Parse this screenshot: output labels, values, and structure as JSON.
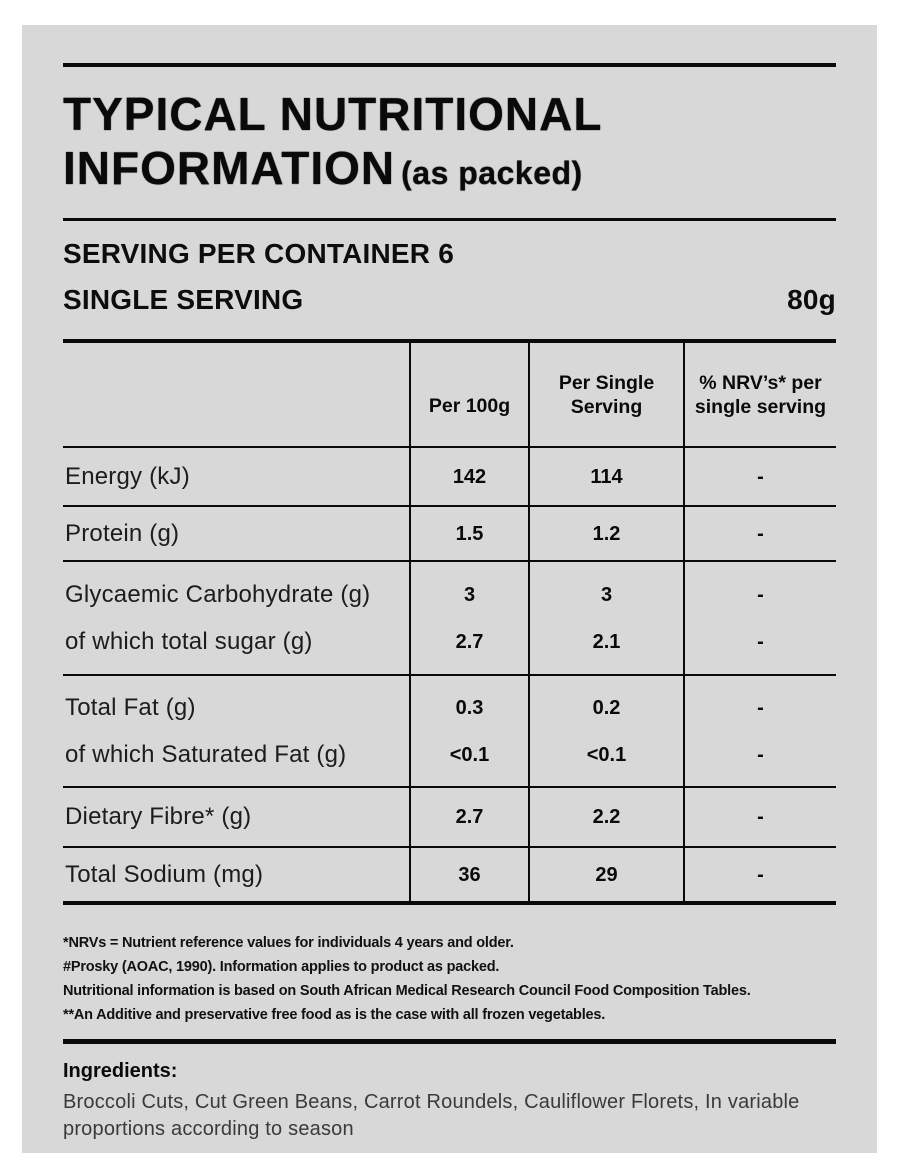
{
  "colors": {
    "panel_background": "#d8d8d8",
    "text": "#0a0a0a"
  },
  "title": {
    "line1": "TYPICAL NUTRITIONAL",
    "line2": "INFORMATION",
    "suffix": "(as packed)"
  },
  "serving": {
    "per_container": "SERVING PER CONTAINER 6",
    "single_serving_label": "SINGLE SERVING",
    "single_serving_value": "80g"
  },
  "table": {
    "headers": {
      "col1": "",
      "col2": "Per 100g",
      "col3": "Per Single\nServing",
      "col4": "% NRV’s* per\nsingle serving"
    },
    "rows": [
      {
        "label": [
          "Energy (kJ)"
        ],
        "per_100g": [
          "142"
        ],
        "per_serving": [
          "114"
        ],
        "nrv": [
          "-"
        ]
      },
      {
        "label": [
          "Protein (g)"
        ],
        "per_100g": [
          "1.5"
        ],
        "per_serving": [
          "1.2"
        ],
        "nrv": [
          "-"
        ]
      },
      {
        "label": [
          "Glycaemic Carbohydrate (g)",
          "of which total sugar (g)"
        ],
        "per_100g": [
          "3",
          "2.7"
        ],
        "per_serving": [
          "3",
          "2.1"
        ],
        "nrv": [
          "-",
          "-"
        ]
      },
      {
        "label": [
          "Total Fat (g)",
          "of which Saturated Fat (g)"
        ],
        "per_100g": [
          "0.3",
          "<0.1"
        ],
        "per_serving": [
          "0.2",
          "<0.1"
        ],
        "nrv": [
          "-",
          "-"
        ]
      },
      {
        "label": [
          "Dietary Fibre* (g)"
        ],
        "per_100g": [
          "2.7"
        ],
        "per_serving": [
          "2.2"
        ],
        "nrv": [
          "-"
        ]
      },
      {
        "label": [
          "Total Sodium (mg)"
        ],
        "per_100g": [
          "36"
        ],
        "per_serving": [
          "29"
        ],
        "nrv": [
          "-"
        ]
      }
    ]
  },
  "footnotes": [
    "*NRVs = Nutrient reference values for individuals 4 years and older.",
    "#Prosky (AOAC, 1990). Information applies to product as packed.",
    "Nutritional information is based on South African Medical Research Council Food Composition Tables.",
    "**An Additive and preservative free food as is the case with all frozen vegetables."
  ],
  "ingredients": {
    "heading": "Ingredients:",
    "text": "Broccoli Cuts, Cut Green Beans, Carrot Roundels, Cauliflower Florets, In variable proportions according to season"
  }
}
